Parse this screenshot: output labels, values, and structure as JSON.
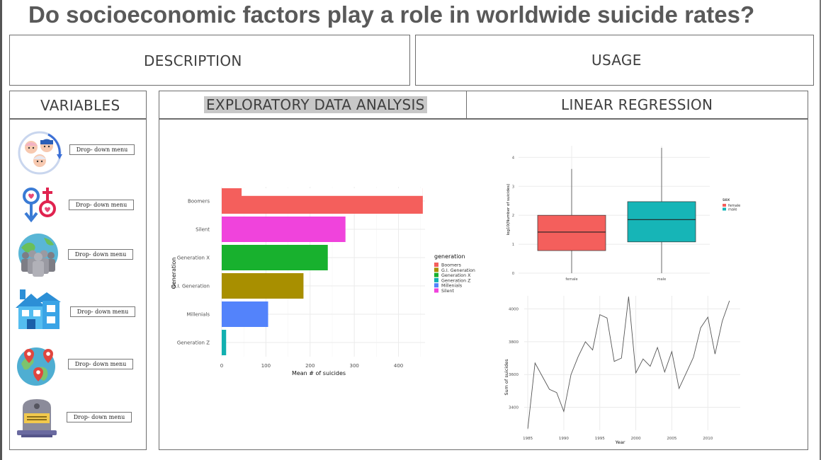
{
  "title": "Do socioeconomic factors play a role in worldwide suicide rates?",
  "tabs": {
    "description": "DESCRIPTION",
    "usage": "USAGE",
    "variables": "VARIABLES",
    "eda": "EXPLORATORY DATA ANALYSIS",
    "regression": "LINEAR REGRESSION"
  },
  "variables": [
    {
      "icon": "age-generation-icon",
      "dropdown": "Drop- down menu"
    },
    {
      "icon": "sex-symbols-icon",
      "dropdown": "Drop- down menu"
    },
    {
      "icon": "population-group-icon",
      "dropdown": "Drop- down menu"
    },
    {
      "icon": "house-icon",
      "dropdown": "Drop- down menu"
    },
    {
      "icon": "globe-pins-icon",
      "dropdown": "Drop- down menu"
    },
    {
      "icon": "tombstone-icon",
      "dropdown": "Drop- down menu"
    }
  ],
  "chart_data": [
    {
      "type": "bar",
      "orientation": "horizontal",
      "categories": [
        "Boomers",
        "Silent",
        "Generation X",
        "G.I. Generation",
        "Millenials",
        "Generation Z"
      ],
      "values": [
        455,
        280,
        240,
        185,
        105,
        10
      ],
      "extra_segment": {
        "category": "Boomers",
        "value": 45
      },
      "xlabel": "Mean # of suicides",
      "ylabel": "Generation",
      "xlim": [
        0,
        460
      ],
      "xticks": [
        0,
        100,
        200,
        300,
        400
      ],
      "legend": {
        "title": "generation",
        "placement": "right",
        "entries": [
          "Boomers",
          "G.I. Generation",
          "Generation X",
          "Generation Z",
          "Millenials",
          "Silent"
        ]
      },
      "colors": {
        "Boomers": "#f45f5c",
        "Silent": "#f043dc",
        "Generation X": "#18b12e",
        "G.I. Generation": "#a88f00",
        "Millenials": "#5383fb",
        "Generation Z": "#12b0b0"
      },
      "grid": true
    },
    {
      "type": "box",
      "categories": [
        "female",
        "male"
      ],
      "boxes": [
        {
          "name": "female",
          "min": 0,
          "q1": 0.78,
          "median": 1.42,
          "q3": 2.0,
          "max": 3.6
        },
        {
          "name": "male",
          "min": 0,
          "q1": 1.08,
          "median": 1.85,
          "q3": 2.47,
          "max": 4.33
        }
      ],
      "ylabel": "log10(Number of suicides)",
      "yticks": [
        0,
        1,
        2,
        3,
        4
      ],
      "ylim": [
        0,
        4.4
      ],
      "legend": {
        "title": "sex",
        "placement": "right",
        "entries": [
          "female",
          "male"
        ]
      },
      "colors": {
        "female": "#f45f5c",
        "male": "#16b5b7"
      },
      "grid": true
    },
    {
      "type": "line",
      "x": [
        1985,
        1986,
        1987,
        1988,
        1989,
        1990,
        1991,
        1992,
        1993,
        1994,
        1995,
        1996,
        1997,
        1998,
        1999,
        2000,
        2001,
        2002,
        2003,
        2004,
        2005,
        2006,
        2007,
        2008,
        2009,
        2010,
        2011,
        2012,
        2013
      ],
      "y": [
        3270,
        3670,
        3590,
        3510,
        3490,
        3375,
        3600,
        3710,
        3800,
        3750,
        3965,
        3945,
        3680,
        3700,
        4075,
        3610,
        3695,
        3650,
        3765,
        3615,
        3740,
        3515,
        3610,
        3705,
        3885,
        3950,
        3725,
        3925,
        4050
      ],
      "xlabel": "Year",
      "ylabel": "Sum of suicides",
      "xticks": [
        1985,
        1990,
        1995,
        2000,
        2005,
        2010
      ],
      "yticks": [
        3400,
        3600,
        3800,
        4000
      ],
      "xlim": [
        1984.5,
        2014.5
      ],
      "ylim": [
        3260,
        4080
      ],
      "color": "#555555",
      "grid": true
    }
  ]
}
